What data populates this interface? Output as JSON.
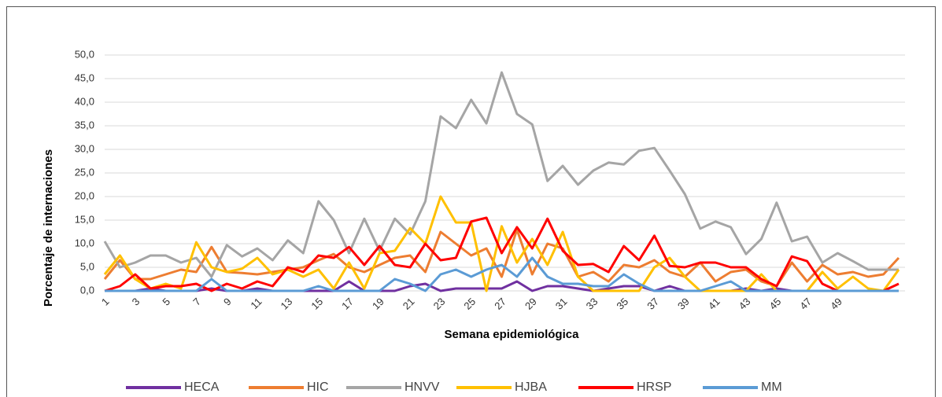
{
  "chart_data": {
    "type": "line",
    "x_label": "Semana epidemiológica",
    "y_label": "Porcentaje de internaciones",
    "categories": [
      "1",
      null,
      "3",
      null,
      "5",
      null,
      "7",
      null,
      "9",
      null,
      "11",
      null,
      "13",
      null,
      "15",
      null,
      "17",
      null,
      "19",
      null,
      "21",
      null,
      "23",
      null,
      "25",
      null,
      "27",
      null,
      "29",
      null,
      "31",
      null,
      "33",
      null,
      "35",
      null,
      "37",
      null,
      "39",
      null,
      "41",
      null,
      "43",
      null,
      "45",
      null,
      "47",
      null,
      "49",
      null,
      null,
      null,
      null
    ],
    "ylim": [
      0,
      50
    ],
    "yticks": [
      {
        "value": 0,
        "label": "0,0"
      },
      {
        "value": 5,
        "label": "5,0"
      },
      {
        "value": 10,
        "label": "10,0"
      },
      {
        "value": 15,
        "label": "15,0"
      },
      {
        "value": 20,
        "label": "20,0"
      },
      {
        "value": 25,
        "label": "25,0"
      },
      {
        "value": 30,
        "label": "30,0"
      },
      {
        "value": 35,
        "label": "35,0"
      },
      {
        "value": 40,
        "label": "40,0"
      },
      {
        "value": 45,
        "label": "45,0"
      },
      {
        "value": 50,
        "label": "50,0"
      }
    ],
    "grid": true,
    "legend": "bottom",
    "series": [
      {
        "name": "HECA",
        "color": "#7030a0",
        "values": [
          0,
          0,
          0,
          0.5,
          0,
          0,
          0,
          0.5,
          0,
          0,
          0.5,
          0,
          0,
          0,
          0,
          0,
          2,
          0,
          0,
          0,
          1,
          1.5,
          0,
          0.5,
          0.5,
          0.5,
          0.5,
          2,
          0,
          1,
          1,
          0.5,
          0,
          0.5,
          1,
          1,
          0,
          1,
          0,
          0,
          0,
          0,
          0.5,
          0,
          0.5,
          0,
          0,
          0,
          0,
          0,
          0,
          0,
          0
        ]
      },
      {
        "name": "HIC",
        "color": "#ed7d31",
        "values": [
          2.5,
          6.5,
          2.5,
          2.5,
          3.5,
          4.5,
          4,
          9.3,
          4,
          3.8,
          3.5,
          4,
          4.5,
          5,
          6.5,
          7.8,
          5,
          4,
          5.5,
          7,
          7.5,
          4,
          12.5,
          10,
          7.5,
          9,
          3,
          13,
          3.5,
          10,
          9,
          3,
          4,
          2,
          5.5,
          5,
          6.5,
          4,
          3,
          6,
          2,
          4,
          4.5,
          2,
          1,
          6,
          2,
          5.5,
          3.5,
          4,
          3,
          3.5,
          7
        ]
      },
      {
        "name": "HNVV",
        "color": "#a5a5a5",
        "values": [
          10.5,
          5,
          6,
          7.5,
          7.5,
          6,
          7,
          3,
          9.7,
          7.3,
          9,
          6.5,
          10.7,
          8,
          19,
          15,
          8,
          15.3,
          8.5,
          15.3,
          12,
          19,
          37,
          34.5,
          40.5,
          35.5,
          46.3,
          37.5,
          35.3,
          23.3,
          26.5,
          22.5,
          25.5,
          27.2,
          26.8,
          29.7,
          30.3,
          25.5,
          20.5,
          13.2,
          14.7,
          13.5,
          7.8,
          11,
          18.7,
          10.5,
          11.5,
          6,
          8,
          6.3,
          4.5,
          4.5,
          4.5
        ]
      },
      {
        "name": "HJBA",
        "color": "#ffc000",
        "values": [
          3.5,
          7.5,
          2.5,
          0.5,
          1.5,
          0.5,
          10.3,
          5,
          4,
          4.7,
          7,
          3.5,
          4.5,
          3,
          4.5,
          0.5,
          6,
          0.5,
          8,
          8.5,
          13.3,
          10,
          20,
          14.5,
          14.5,
          0,
          13.7,
          6,
          11,
          5.5,
          12.5,
          3,
          0,
          0,
          0,
          0,
          5,
          7,
          3,
          0,
          0,
          0,
          0,
          3.5,
          0,
          0,
          0,
          4,
          0.5,
          3,
          0.5,
          0,
          4.5
        ]
      },
      {
        "name": "HRSP",
        "color": "#ff0000",
        "values": [
          0,
          1,
          3.5,
          0.5,
          1,
          1,
          1.5,
          0,
          1.5,
          0.5,
          2,
          1,
          5,
          4,
          7.5,
          7,
          9.3,
          5.5,
          9.5,
          5.5,
          5,
          10,
          6.5,
          7,
          14.7,
          15.5,
          8,
          13.5,
          9,
          15.3,
          8.5,
          5.5,
          5.7,
          4,
          9.5,
          6.5,
          11.7,
          5.3,
          5,
          6,
          6,
          5,
          5,
          2.5,
          1,
          7.3,
          6.3,
          1.5,
          0,
          0,
          0,
          0,
          1.5
        ]
      },
      {
        "name": "MM",
        "color": "#5b9bd5",
        "values": [
          0,
          0,
          0,
          0,
          0,
          0,
          0,
          2.5,
          0,
          0,
          0,
          0,
          0,
          0,
          1,
          0,
          0,
          0,
          0,
          2.5,
          1.5,
          0,
          3.5,
          4.5,
          3,
          4.5,
          5.5,
          3,
          7,
          3,
          1.5,
          1.5,
          1,
          1,
          3.5,
          1.5,
          0,
          0,
          0,
          0,
          1,
          2,
          0,
          0,
          0,
          0,
          0,
          0,
          0,
          0,
          0,
          0,
          0
        ]
      }
    ]
  }
}
